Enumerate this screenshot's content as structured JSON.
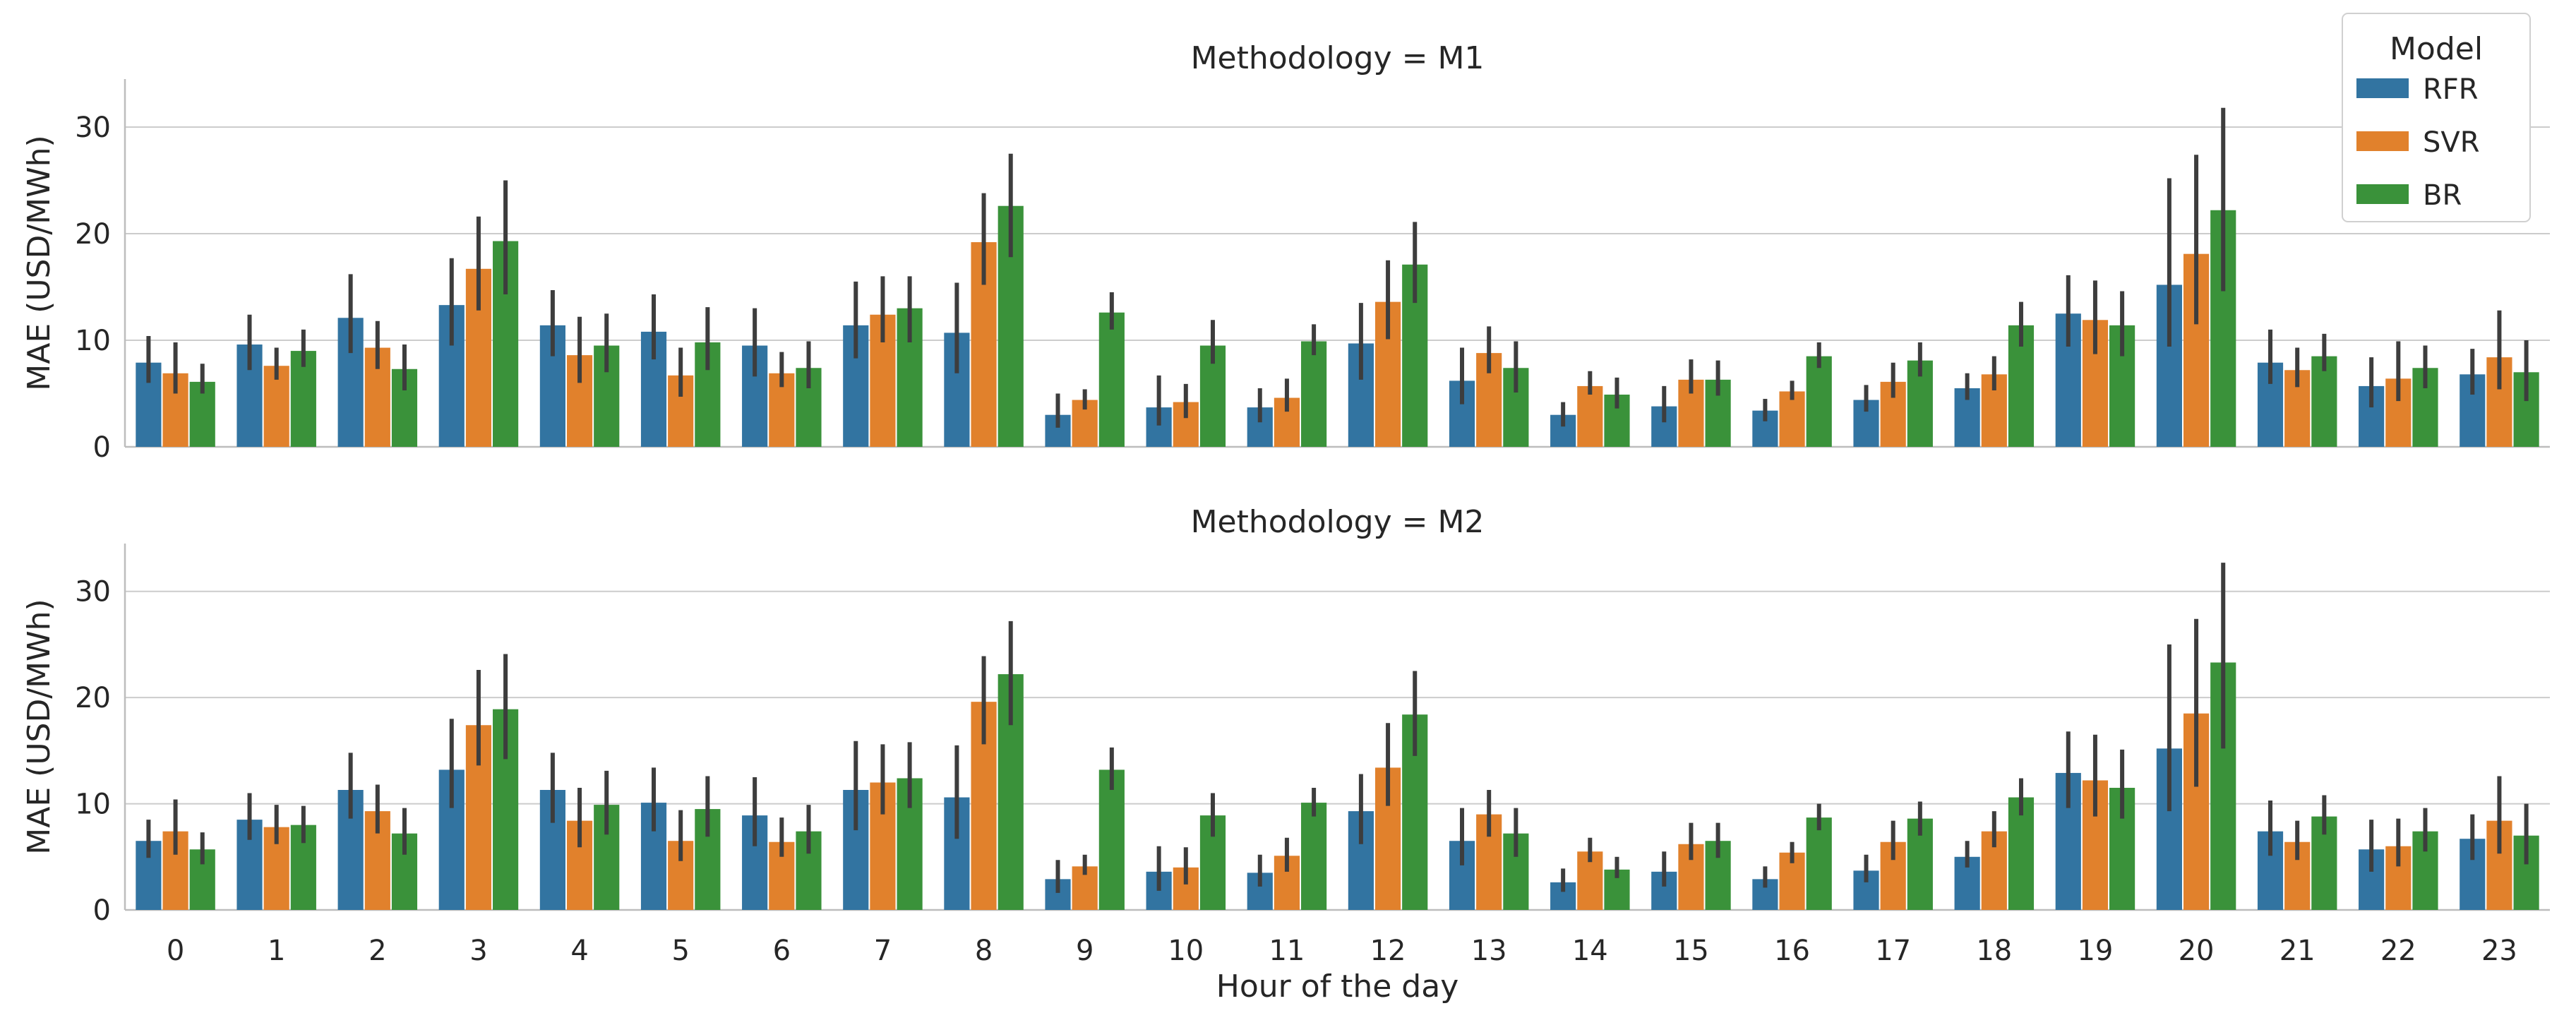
{
  "chart_data": [
    {
      "type": "bar",
      "title": "Methodology = M1",
      "xlabel": "",
      "ylabel": "MAE (USD/MWh)",
      "ylim": [
        0,
        34.5
      ],
      "yticks": [
        0,
        10,
        20,
        30
      ],
      "grid": "horizontal",
      "categories": [
        "0",
        "1",
        "2",
        "3",
        "4",
        "5",
        "6",
        "7",
        "8",
        "9",
        "10",
        "11",
        "12",
        "13",
        "14",
        "15",
        "16",
        "17",
        "18",
        "19",
        "20",
        "21",
        "22",
        "23"
      ],
      "series": [
        {
          "name": "RFR",
          "values": [
            7.9,
            9.6,
            12.1,
            13.3,
            11.4,
            10.8,
            9.5,
            11.4,
            10.7,
            3.0,
            3.7,
            3.7,
            9.7,
            6.2,
            3.0,
            3.8,
            3.4,
            4.4,
            5.5,
            12.5,
            15.2,
            7.9,
            5.7,
            6.8
          ],
          "ci": [
            [
              6,
              10.4
            ],
            [
              7.2,
              12.4
            ],
            [
              8.8,
              16.2
            ],
            [
              9.5,
              17.7
            ],
            [
              8.5,
              14.7
            ],
            [
              8.2,
              14.3
            ],
            [
              6.6,
              13
            ],
            [
              8.3,
              15.5
            ],
            [
              6.9,
              15.4
            ],
            [
              1.8,
              5
            ],
            [
              2,
              6.7
            ],
            [
              2.3,
              5.5
            ],
            [
              6.3,
              13.5
            ],
            [
              4,
              9.3
            ],
            [
              1.9,
              4.2
            ],
            [
              2.3,
              5.7
            ],
            [
              2.4,
              4.5
            ],
            [
              3.3,
              5.8
            ],
            [
              4.4,
              6.9
            ],
            [
              9.4,
              16.1
            ],
            [
              9.4,
              25.2
            ],
            [
              5.9,
              11
            ],
            [
              3.7,
              8.4
            ],
            [
              4.9,
              9.2
            ]
          ]
        },
        {
          "name": "SVR",
          "values": [
            6.9,
            7.6,
            9.3,
            16.7,
            8.6,
            6.7,
            6.9,
            12.4,
            19.2,
            4.4,
            4.2,
            4.6,
            13.6,
            8.8,
            5.7,
            6.3,
            5.2,
            6.1,
            6.8,
            11.9,
            18.1,
            7.2,
            6.4,
            8.4
          ],
          "ci": [
            [
              5,
              9.8
            ],
            [
              6.3,
              9.3
            ],
            [
              7.3,
              11.8
            ],
            [
              12.8,
              21.6
            ],
            [
              6,
              12.2
            ],
            [
              4.7,
              9.3
            ],
            [
              5.6,
              8.9
            ],
            [
              9.8,
              16
            ],
            [
              15.2,
              23.8
            ],
            [
              3.5,
              5.4
            ],
            [
              2.7,
              5.9
            ],
            [
              3.3,
              6.4
            ],
            [
              10.1,
              17.5
            ],
            [
              6.9,
              11.3
            ],
            [
              4.9,
              7.1
            ],
            [
              5,
              8.2
            ],
            [
              4.4,
              6.2
            ],
            [
              4.6,
              7.9
            ],
            [
              5.3,
              8.5
            ],
            [
              8.7,
              15.6
            ],
            [
              11.5,
              27.4
            ],
            [
              5.6,
              9.3
            ],
            [
              4.3,
              9.9
            ],
            [
              5.4,
              12.8
            ]
          ]
        },
        {
          "name": "BR",
          "values": [
            6.1,
            9.0,
            7.3,
            19.3,
            9.5,
            9.8,
            7.4,
            13.0,
            22.6,
            12.6,
            9.5,
            9.9,
            17.1,
            7.4,
            4.9,
            6.3,
            8.5,
            8.1,
            11.4,
            11.4,
            22.2,
            8.5,
            7.4,
            7.0
          ],
          "ci": [
            [
              5,
              7.8
            ],
            [
              7.5,
              11
            ],
            [
              5.3,
              9.6
            ],
            [
              14.3,
              25
            ],
            [
              7,
              12.5
            ],
            [
              7.2,
              13.1
            ],
            [
              5.5,
              9.9
            ],
            [
              9.8,
              16
            ],
            [
              17.8,
              27.5
            ],
            [
              11,
              14.5
            ],
            [
              7.8,
              11.9
            ],
            [
              8.6,
              11.5
            ],
            [
              13.5,
              21.1
            ],
            [
              5.1,
              9.9
            ],
            [
              3.6,
              6.5
            ],
            [
              4.8,
              8.1
            ],
            [
              7.4,
              9.8
            ],
            [
              6.6,
              9.8
            ],
            [
              9.4,
              13.6
            ],
            [
              8.5,
              14.6
            ],
            [
              14.6,
              31.8
            ],
            [
              7.1,
              10.6
            ],
            [
              5.5,
              9.5
            ],
            [
              4.3,
              10
            ]
          ]
        }
      ]
    },
    {
      "type": "bar",
      "title": "Methodology = M2",
      "xlabel": "Hour of the day",
      "ylabel": "MAE (USD/MWh)",
      "ylim": [
        0,
        34.5
      ],
      "yticks": [
        0,
        10,
        20,
        30
      ],
      "grid": "horizontal",
      "categories": [
        "0",
        "1",
        "2",
        "3",
        "4",
        "5",
        "6",
        "7",
        "8",
        "9",
        "10",
        "11",
        "12",
        "13",
        "14",
        "15",
        "16",
        "17",
        "18",
        "19",
        "20",
        "21",
        "22",
        "23"
      ],
      "series": [
        {
          "name": "RFR",
          "values": [
            6.5,
            8.5,
            11.3,
            13.2,
            11.3,
            10.1,
            8.9,
            11.3,
            10.6,
            2.9,
            3.6,
            3.5,
            9.3,
            6.5,
            2.6,
            3.6,
            2.9,
            3.7,
            5.0,
            12.9,
            15.2,
            7.4,
            5.7,
            6.7
          ],
          "ci": [
            [
              4.9,
              8.5
            ],
            [
              6.6,
              11
            ],
            [
              8.6,
              14.8
            ],
            [
              9.6,
              18
            ],
            [
              8.2,
              14.8
            ],
            [
              7.4,
              13.4
            ],
            [
              6,
              12.5
            ],
            [
              7.5,
              15.9
            ],
            [
              6.7,
              15.5
            ],
            [
              1.6,
              4.7
            ],
            [
              1.8,
              6
            ],
            [
              2.2,
              5.2
            ],
            [
              6.2,
              12.8
            ],
            [
              4.2,
              9.6
            ],
            [
              1.7,
              3.9
            ],
            [
              2.2,
              5.5
            ],
            [
              2.1,
              4.1
            ],
            [
              2.6,
              5.2
            ],
            [
              4,
              6.5
            ],
            [
              9.6,
              16.8
            ],
            [
              9.3,
              25
            ],
            [
              5.1,
              10.3
            ],
            [
              3.6,
              8.5
            ],
            [
              4.7,
              9
            ]
          ]
        },
        {
          "name": "SVR",
          "values": [
            7.4,
            7.8,
            9.3,
            17.4,
            8.4,
            6.5,
            6.4,
            12.0,
            19.6,
            4.1,
            4.0,
            5.1,
            13.4,
            9.0,
            5.5,
            6.2,
            5.4,
            6.4,
            7.4,
            12.2,
            18.5,
            6.4,
            6.0,
            8.4
          ],
          "ci": [
            [
              5.2,
              10.4
            ],
            [
              6.2,
              9.9
            ],
            [
              7.2,
              11.8
            ],
            [
              13.6,
              22.6
            ],
            [
              5.9,
              11.5
            ],
            [
              4.6,
              9.4
            ],
            [
              5,
              8.7
            ],
            [
              9,
              15.6
            ],
            [
              15.6,
              23.9
            ],
            [
              3.3,
              5.2
            ],
            [
              2.4,
              5.9
            ],
            [
              3.6,
              6.8
            ],
            [
              9.8,
              17.6
            ],
            [
              6.9,
              11.3
            ],
            [
              4.5,
              6.8
            ],
            [
              4.7,
              8.2
            ],
            [
              4.4,
              6.4
            ],
            [
              4.7,
              8.4
            ],
            [
              5.9,
              9.3
            ],
            [
              8.8,
              16.5
            ],
            [
              11.6,
              27.4
            ],
            [
              4.7,
              8.4
            ],
            [
              4.1,
              8.6
            ],
            [
              5.3,
              12.6
            ]
          ]
        },
        {
          "name": "BR",
          "values": [
            5.7,
            8.0,
            7.2,
            18.9,
            9.9,
            9.5,
            7.4,
            12.4,
            22.2,
            13.2,
            8.9,
            10.1,
            18.4,
            7.2,
            3.8,
            6.5,
            8.7,
            8.6,
            10.6,
            11.5,
            23.3,
            8.8,
            7.4,
            7.0
          ],
          "ci": [
            [
              4.3,
              7.3
            ],
            [
              6.3,
              9.8
            ],
            [
              5.2,
              9.6
            ],
            [
              14.2,
              24.1
            ],
            [
              7.1,
              13.1
            ],
            [
              6.9,
              12.6
            ],
            [
              5.3,
              9.9
            ],
            [
              9.6,
              15.8
            ],
            [
              17.4,
              27.2
            ],
            [
              11.3,
              15.3
            ],
            [
              6.9,
              11
            ],
            [
              8.8,
              11.5
            ],
            [
              14.5,
              22.5
            ],
            [
              5,
              9.6
            ],
            [
              3,
              5
            ],
            [
              4.9,
              8.2
            ],
            [
              7.5,
              10
            ],
            [
              7,
              10.2
            ],
            [
              8.9,
              12.4
            ],
            [
              8.6,
              15.1
            ],
            [
              15.2,
              32.7
            ],
            [
              7.1,
              10.8
            ],
            [
              5.5,
              9.6
            ],
            [
              4.3,
              10
            ]
          ]
        }
      ]
    }
  ],
  "legend": {
    "title": "Model",
    "placement": "top-right",
    "entries": [
      "RFR",
      "SVR",
      "BR"
    ]
  },
  "colors": {
    "RFR": "#3274a1",
    "SVR": "#e1812c",
    "BR": "#3a923a",
    "errorbar": "#3d3d3d",
    "grid": "#cccccc"
  }
}
